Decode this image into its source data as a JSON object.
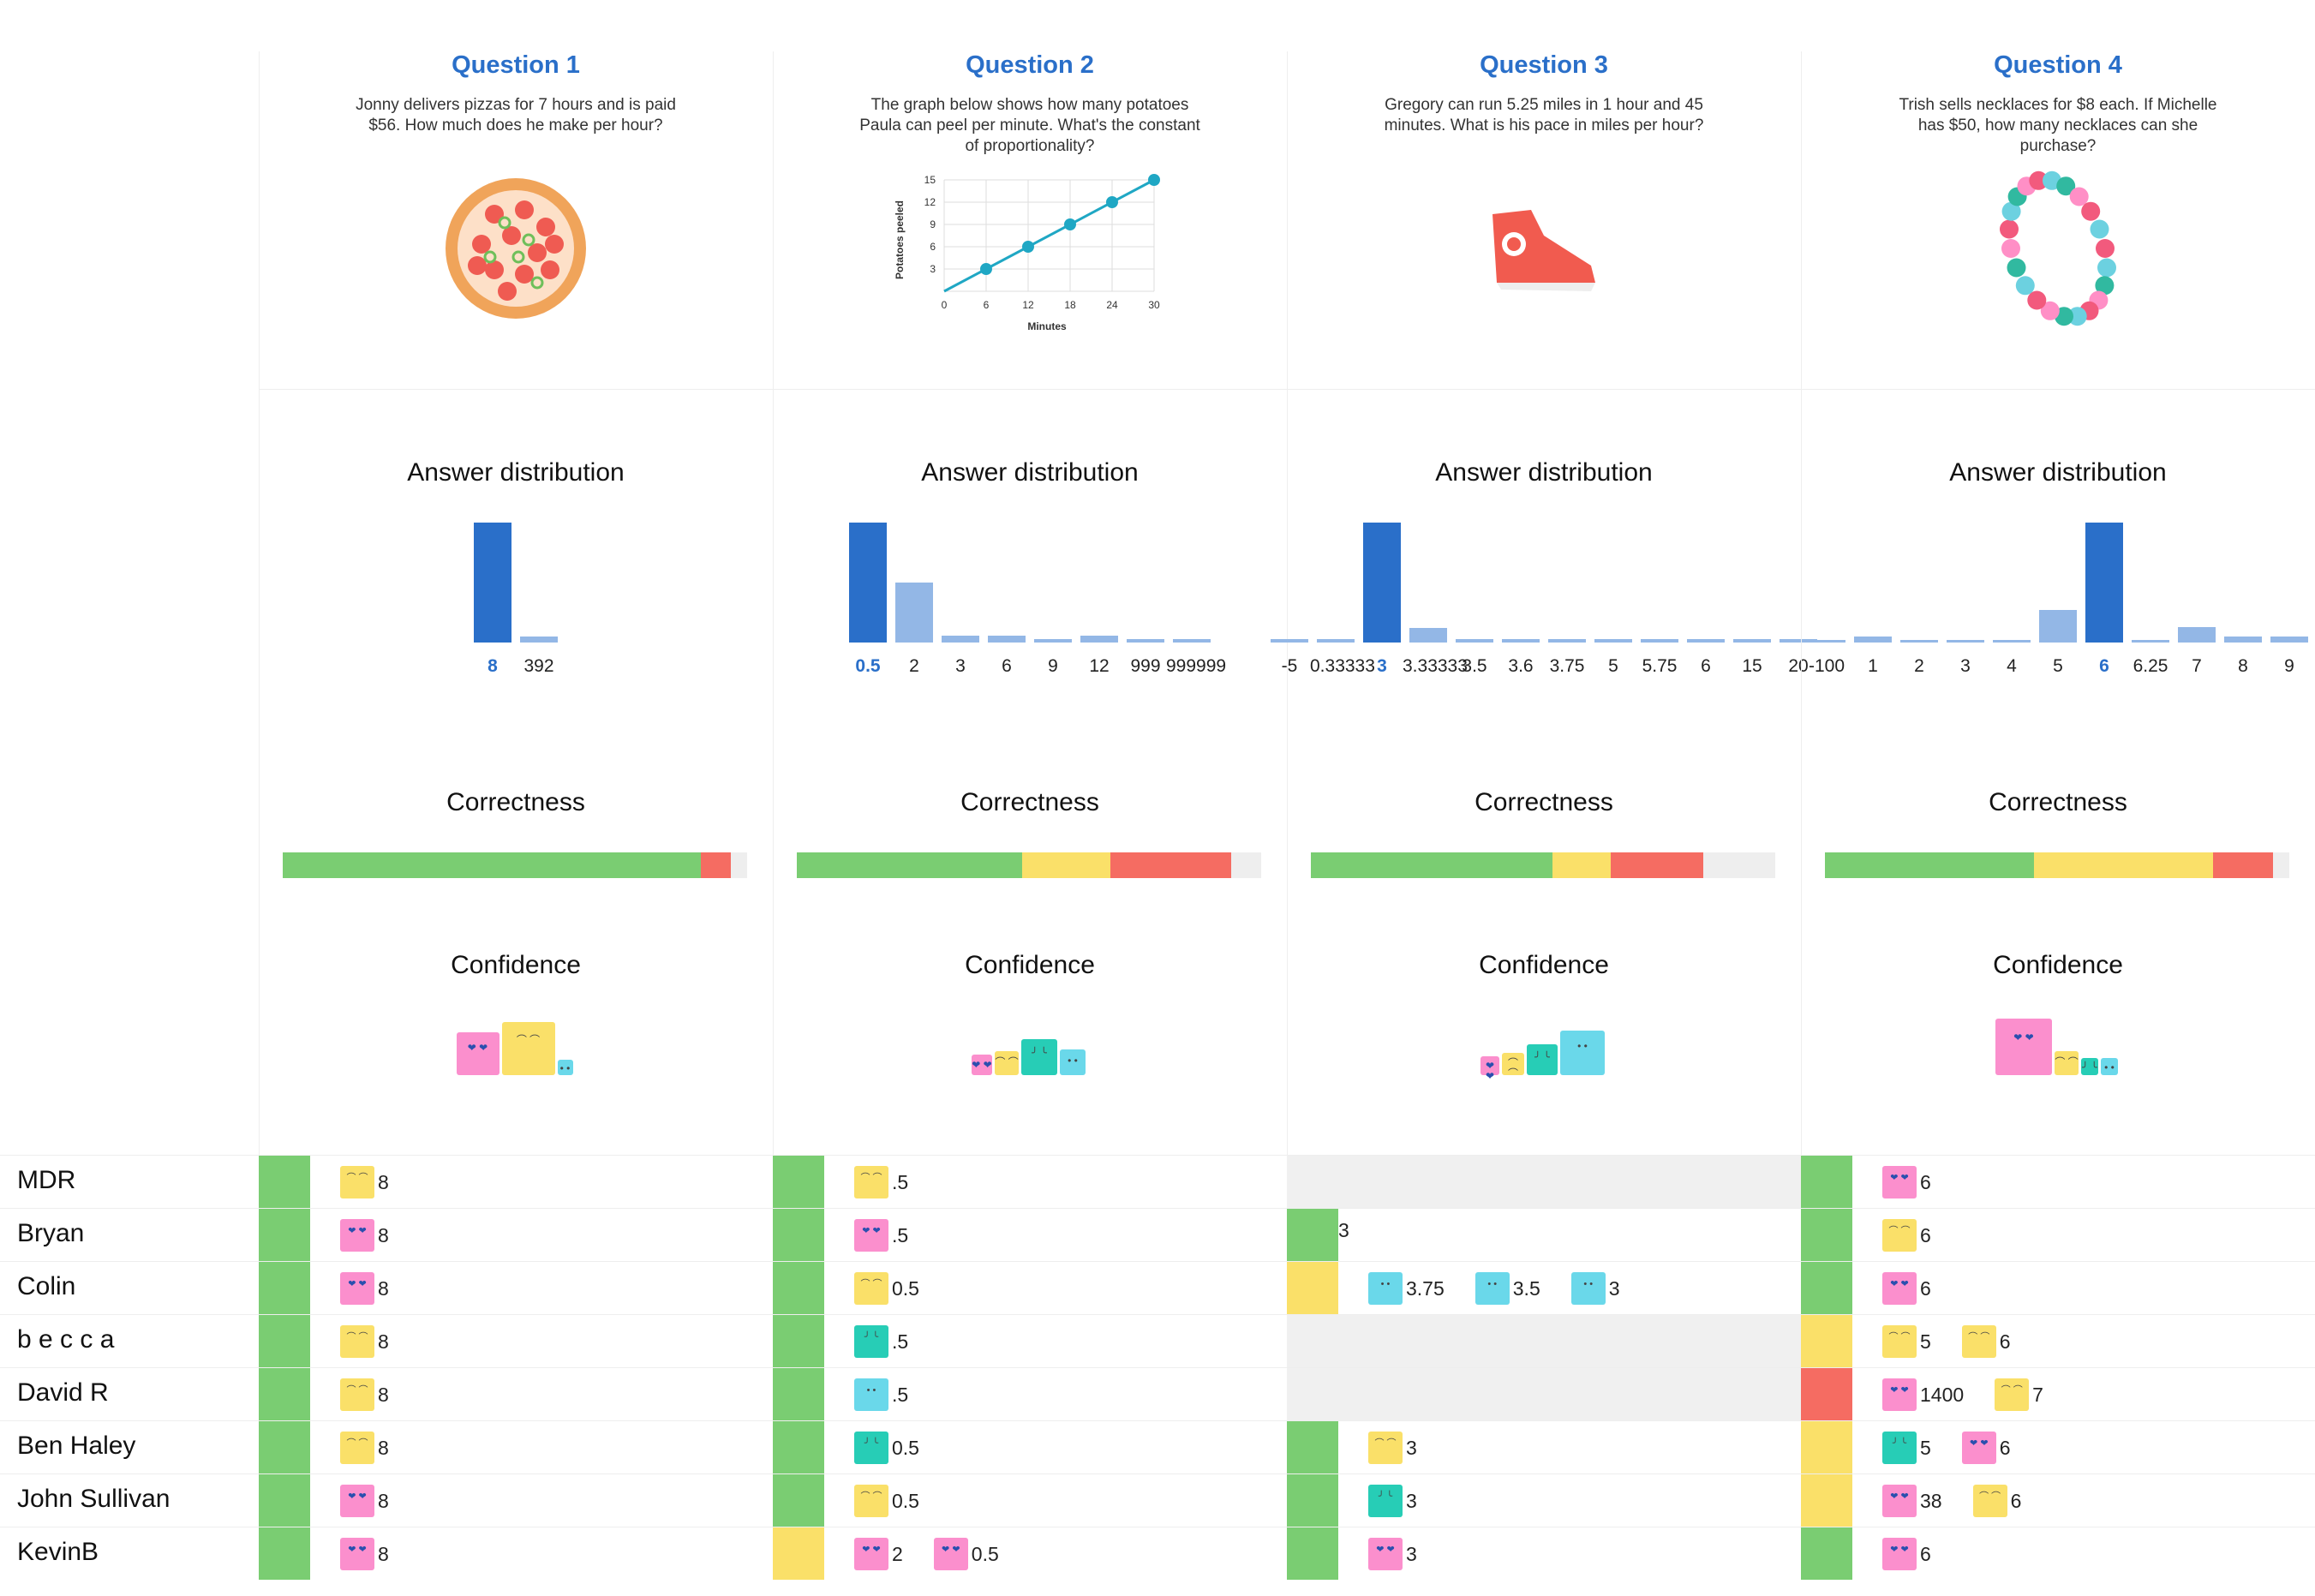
{
  "colors": {
    "correct": "#7acd72",
    "partial": "#fae069",
    "wrong": "#f56c62",
    "blank": "#f0f0f0",
    "accent": "#2a6fc9",
    "barLight": "#93b7e6",
    "barDark": "#2a6fc9"
  },
  "sections": {
    "distribution": "Answer distribution",
    "correctness": "Correctness",
    "confidence": "Confidence"
  },
  "questions": [
    {
      "title": "Question 1",
      "text": "Jonny delivers pizzas for 7 hours and is paid $56. How much does he make per hour?",
      "illustration": "pizza-icon",
      "distribution": {
        "labels": [
          "8",
          "392"
        ],
        "values": [
          100,
          5
        ],
        "correct_index": 0
      },
      "correctness": {
        "correct": 0.9,
        "partial": 0,
        "wrong": 0.065
      },
      "confidence": [
        "love",
        "happy",
        "sweat"
      ]
    },
    {
      "title": "Question 2",
      "text": "The graph below shows how many potatoes Paula can peel per minute. What's the constant of proportionality?",
      "illustration": "line-graph",
      "graph": {
        "ylabel": "Potatoes peeled",
        "xlabel": "Minutes",
        "xticks": [
          "0",
          "6",
          "12",
          "18",
          "24",
          "30"
        ],
        "yticks": [
          "3",
          "6",
          "9",
          "12",
          "15"
        ]
      },
      "distribution": {
        "labels": [
          "0.5",
          "2",
          "3",
          "6",
          "9",
          "12",
          "999",
          "999999"
        ],
        "values": [
          100,
          50,
          6,
          6,
          3,
          6,
          3,
          3
        ],
        "correct_index": 0
      },
      "correctness": {
        "correct": 0.485,
        "partial": 0.19,
        "wrong": 0.26
      },
      "confidence": [
        "love",
        "happy",
        "sad",
        "sweat"
      ]
    },
    {
      "title": "Question 3",
      "text": "Gregory can run 5.25 miles in 1 hour and 45 minutes. What is his pace in miles per hour?",
      "illustration": "sneaker-icon",
      "distribution": {
        "labels": [
          "-5",
          "0.33333",
          "3",
          "3.33333",
          "3.5",
          "3.6",
          "3.75",
          "5",
          "5.75",
          "6",
          "15",
          "20"
        ],
        "values": [
          3,
          3,
          100,
          12,
          3,
          3,
          3,
          3,
          3,
          3,
          3,
          3
        ],
        "correct_index": 2
      },
      "correctness": {
        "correct": 0.52,
        "partial": 0.125,
        "wrong": 0.2
      },
      "confidence": [
        "love",
        "happy",
        "sad",
        "sweat"
      ]
    },
    {
      "title": "Question 4",
      "text": "Trish sells necklaces for $8 each. If Michelle has $50, how many necklaces can she purchase?",
      "illustration": "necklace-icon",
      "distribution": {
        "labels": [
          "-100",
          "1",
          "2",
          "3",
          "4",
          "5",
          "6",
          "6.25",
          "7",
          "8",
          "9"
        ],
        "values": [
          2,
          5,
          2,
          2,
          2,
          27,
          100,
          2,
          13,
          5,
          5
        ],
        "correct_index": 6
      },
      "correctness": {
        "correct": 0.45,
        "partial": 0.385,
        "wrong": 0.13
      },
      "confidence": [
        "love",
        "happy",
        "sad",
        "sweat"
      ]
    }
  ],
  "students": [
    {
      "name": "MDR",
      "cells": [
        {
          "status": "correct",
          "answers": [
            [
              "happy",
              "8"
            ]
          ]
        },
        {
          "status": "correct",
          "answers": [
            [
              "happy",
              ".5"
            ]
          ]
        },
        {
          "status": "blank",
          "answers": []
        },
        {
          "status": "correct",
          "answers": [
            [
              "love",
              "6"
            ]
          ]
        }
      ]
    },
    {
      "name": "Bryan",
      "cells": [
        {
          "status": "correct",
          "answers": [
            [
              "love",
              "8"
            ]
          ]
        },
        {
          "status": "correct",
          "answers": [
            [
              "love",
              ".5"
            ]
          ]
        },
        {
          "status": "correct",
          "answers": [
            [
              "none",
              "3"
            ]
          ]
        },
        {
          "status": "correct",
          "answers": [
            [
              "happy",
              "6"
            ]
          ]
        }
      ]
    },
    {
      "name": "Colin",
      "cells": [
        {
          "status": "correct",
          "answers": [
            [
              "love",
              "8"
            ]
          ]
        },
        {
          "status": "correct",
          "answers": [
            [
              "happy",
              "0.5"
            ]
          ]
        },
        {
          "status": "partial",
          "answers": [
            [
              "sweat",
              "3.75"
            ],
            [
              "sweat",
              "3.5"
            ],
            [
              "sweat",
              "3"
            ]
          ]
        },
        {
          "status": "correct",
          "answers": [
            [
              "love",
              "6"
            ]
          ]
        }
      ]
    },
    {
      "name": "b e c c a",
      "cells": [
        {
          "status": "correct",
          "answers": [
            [
              "happy",
              "8"
            ]
          ]
        },
        {
          "status": "correct",
          "answers": [
            [
              "sad",
              ".5"
            ]
          ]
        },
        {
          "status": "blank",
          "answers": []
        },
        {
          "status": "partial",
          "answers": [
            [
              "happy",
              "5"
            ],
            [
              "happy",
              "6"
            ]
          ]
        }
      ]
    },
    {
      "name": "David R",
      "cells": [
        {
          "status": "correct",
          "answers": [
            [
              "happy",
              "8"
            ]
          ]
        },
        {
          "status": "correct",
          "answers": [
            [
              "sweat",
              ".5"
            ]
          ]
        },
        {
          "status": "blank",
          "answers": []
        },
        {
          "status": "wrong",
          "answers": [
            [
              "love",
              "1400"
            ],
            [
              "happy",
              "7"
            ]
          ]
        }
      ]
    },
    {
      "name": "Ben Haley",
      "cells": [
        {
          "status": "correct",
          "answers": [
            [
              "happy",
              "8"
            ]
          ]
        },
        {
          "status": "correct",
          "answers": [
            [
              "sad",
              "0.5"
            ]
          ]
        },
        {
          "status": "correct",
          "answers": [
            [
              "happy",
              "3"
            ]
          ]
        },
        {
          "status": "partial",
          "answers": [
            [
              "sad",
              "5"
            ],
            [
              "love",
              "6"
            ]
          ]
        }
      ]
    },
    {
      "name": "John Sullivan",
      "cells": [
        {
          "status": "correct",
          "answers": [
            [
              "love",
              "8"
            ]
          ]
        },
        {
          "status": "correct",
          "answers": [
            [
              "happy",
              "0.5"
            ]
          ]
        },
        {
          "status": "correct",
          "answers": [
            [
              "sad",
              "3"
            ]
          ]
        },
        {
          "status": "partial",
          "answers": [
            [
              "love",
              "38"
            ],
            [
              "happy",
              "6"
            ]
          ]
        }
      ]
    },
    {
      "name": "KevinB",
      "cells": [
        {
          "status": "correct",
          "answers": [
            [
              "love",
              "8"
            ]
          ]
        },
        {
          "status": "partial",
          "answers": [
            [
              "love",
              "2"
            ],
            [
              "love",
              "0.5"
            ]
          ]
        },
        {
          "status": "correct",
          "answers": [
            [
              "love",
              "3"
            ]
          ]
        },
        {
          "status": "correct",
          "answers": [
            [
              "love",
              "6"
            ]
          ]
        }
      ]
    }
  ]
}
